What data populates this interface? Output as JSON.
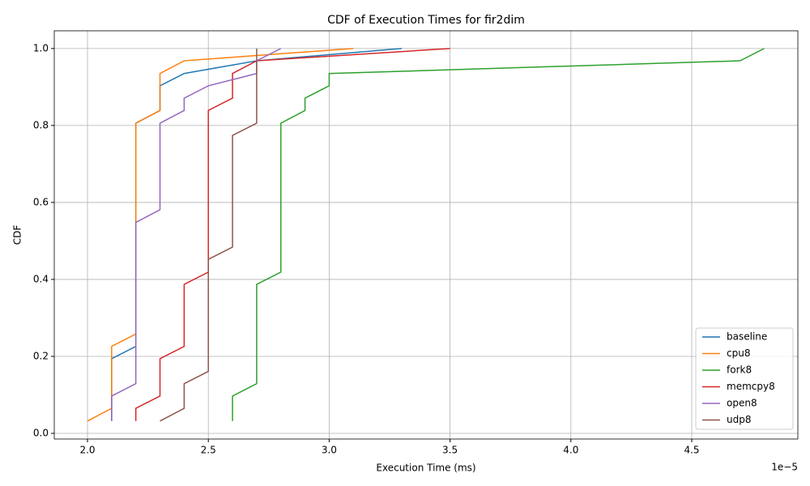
{
  "chart_data": {
    "type": "line",
    "title": "CDF of Execution Times for fir2dim",
    "x_label": "Execution Time (ms)",
    "y_label": "CDF",
    "x_offset_label": "1e−5",
    "xlim": [
      1.8626,
      4.939
    ],
    "ylim": [
      -0.0147,
      1.046
    ],
    "xticks": [
      {
        "value": 2,
        "label": "2.0"
      },
      2.5,
      {
        "value": 3,
        "label": "3.0"
      },
      3.5,
      {
        "value": 4,
        "label": "4.0"
      },
      4.5
    ],
    "yticks": [
      {
        "value": 0,
        "label": "0.0"
      },
      0.2,
      0.4,
      0.6,
      0.8,
      {
        "value": 1,
        "label": "1.0"
      }
    ],
    "grid": true,
    "legend": "lower right",
    "series": [
      {
        "name": "baseline",
        "color": "#1f77b4",
        "x": [
          2.1,
          2.1,
          2.2,
          2.2,
          2.3,
          2.3,
          2.4,
          2.7,
          3.3
        ],
        "values": [
          0.032,
          0.194,
          0.226,
          0.806,
          0.839,
          0.903,
          0.935,
          0.968,
          1.0
        ]
      },
      {
        "name": "cpu8",
        "color": "#ff7f0e",
        "x": [
          2.0,
          2.1,
          2.1,
          2.2,
          2.2,
          2.3,
          2.3,
          2.4,
          3.1
        ],
        "values": [
          0.032,
          0.065,
          0.226,
          0.258,
          0.806,
          0.839,
          0.935,
          0.968,
          1.0
        ]
      },
      {
        "name": "fork8",
        "color": "#2ca02c",
        "x": [
          2.6,
          2.6,
          2.7,
          2.7,
          2.8,
          2.8,
          2.9,
          2.9,
          3.0,
          3.0,
          4.7,
          4.8
        ],
        "values": [
          0.032,
          0.097,
          0.129,
          0.387,
          0.419,
          0.806,
          0.839,
          0.871,
          0.903,
          0.935,
          0.968,
          1.0
        ]
      },
      {
        "name": "memcpy8",
        "color": "#d62728",
        "x": [
          2.2,
          2.2,
          2.3,
          2.3,
          2.4,
          2.4,
          2.5,
          2.5,
          2.6,
          2.6,
          2.7,
          3.5
        ],
        "values": [
          0.032,
          0.065,
          0.097,
          0.194,
          0.226,
          0.387,
          0.419,
          0.839,
          0.871,
          0.935,
          0.968,
          1.0
        ]
      },
      {
        "name": "open8",
        "color": "#9467bd",
        "x": [
          2.1,
          2.1,
          2.2,
          2.2,
          2.3,
          2.3,
          2.4,
          2.4,
          2.5,
          2.7,
          2.7,
          2.8
        ],
        "values": [
          0.032,
          0.097,
          0.129,
          0.548,
          0.581,
          0.806,
          0.839,
          0.871,
          0.903,
          0.935,
          0.968,
          1.0
        ]
      },
      {
        "name": "udp8",
        "color": "#8c564b",
        "x": [
          2.3,
          2.4,
          2.4,
          2.5,
          2.5,
          2.6,
          2.6,
          2.7,
          2.7
        ],
        "values": [
          0.032,
          0.065,
          0.129,
          0.161,
          0.452,
          0.484,
          0.774,
          0.806,
          1.0
        ]
      }
    ]
  }
}
